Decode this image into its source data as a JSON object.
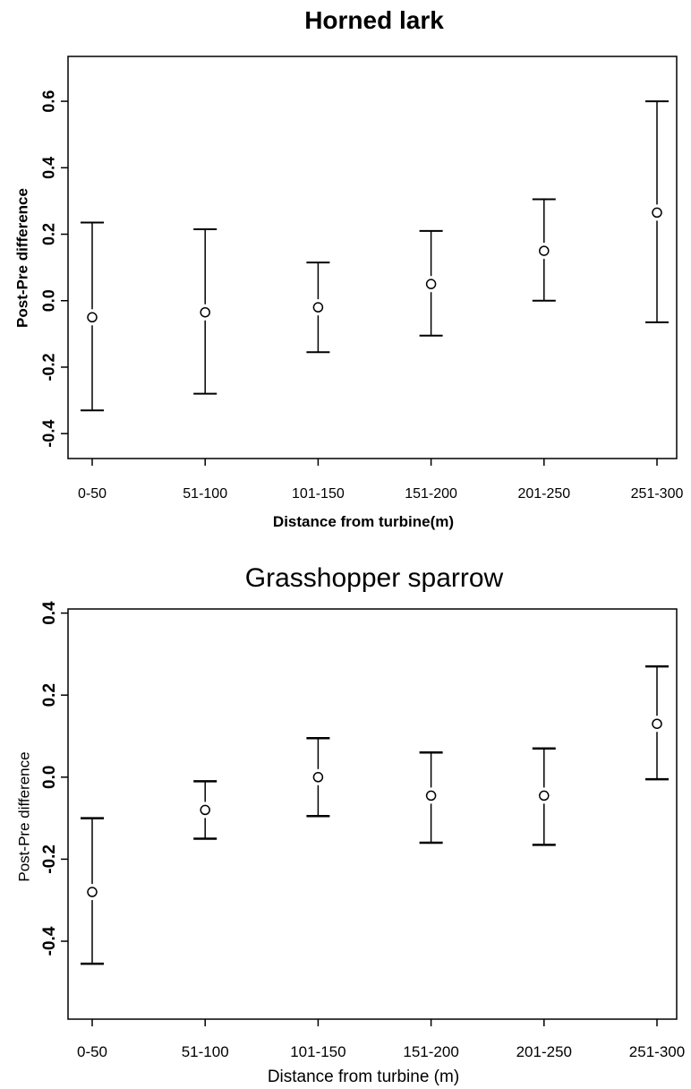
{
  "chart_data": [
    {
      "type": "scatter",
      "title": "Horned lark",
      "xlabel": "Distance from turbine(m)",
      "ylabel": "Post-Pre difference",
      "categories": [
        "0-50",
        "51-100",
        "101-150",
        "151-200",
        "201-250",
        "251-300"
      ],
      "values": [
        -0.05,
        -0.035,
        -0.02,
        0.05,
        0.15,
        0.265
      ],
      "lower": [
        -0.33,
        -0.28,
        -0.155,
        -0.105,
        0.0,
        -0.065
      ],
      "upper": [
        0.235,
        0.215,
        0.115,
        0.21,
        0.305,
        0.6
      ],
      "yticks": [
        -0.4,
        -0.2,
        0.0,
        0.2,
        0.4,
        0.6
      ],
      "ytick_labels": [
        "-0.4",
        "-0.2",
        "0.0",
        "0.2",
        "0.4",
        "0.6"
      ],
      "ylim": [
        -0.475,
        0.735
      ],
      "grid": false,
      "legend": "none"
    },
    {
      "type": "scatter",
      "title": "Grasshopper sparrow",
      "xlabel": "Distance from turbine (m)",
      "ylabel": "Post-Pre difference",
      "categories": [
        "0-50",
        "51-100",
        "101-150",
        "151-200",
        "201-250",
        "251-300"
      ],
      "values": [
        -0.28,
        -0.08,
        0.0,
        -0.045,
        -0.045,
        0.13
      ],
      "lower": [
        -0.455,
        -0.15,
        -0.095,
        -0.16,
        -0.165,
        -0.005
      ],
      "upper": [
        -0.1,
        -0.01,
        0.095,
        0.06,
        0.07,
        0.27
      ],
      "yticks": [
        -0.4,
        -0.2,
        0.0,
        0.2,
        0.4
      ],
      "ytick_labels": [
        "-0.4",
        "-0.2",
        "0.0",
        "0.2",
        "0.4"
      ],
      "ylim": [
        -0.59,
        0.41
      ],
      "grid": false,
      "legend": "none"
    }
  ]
}
